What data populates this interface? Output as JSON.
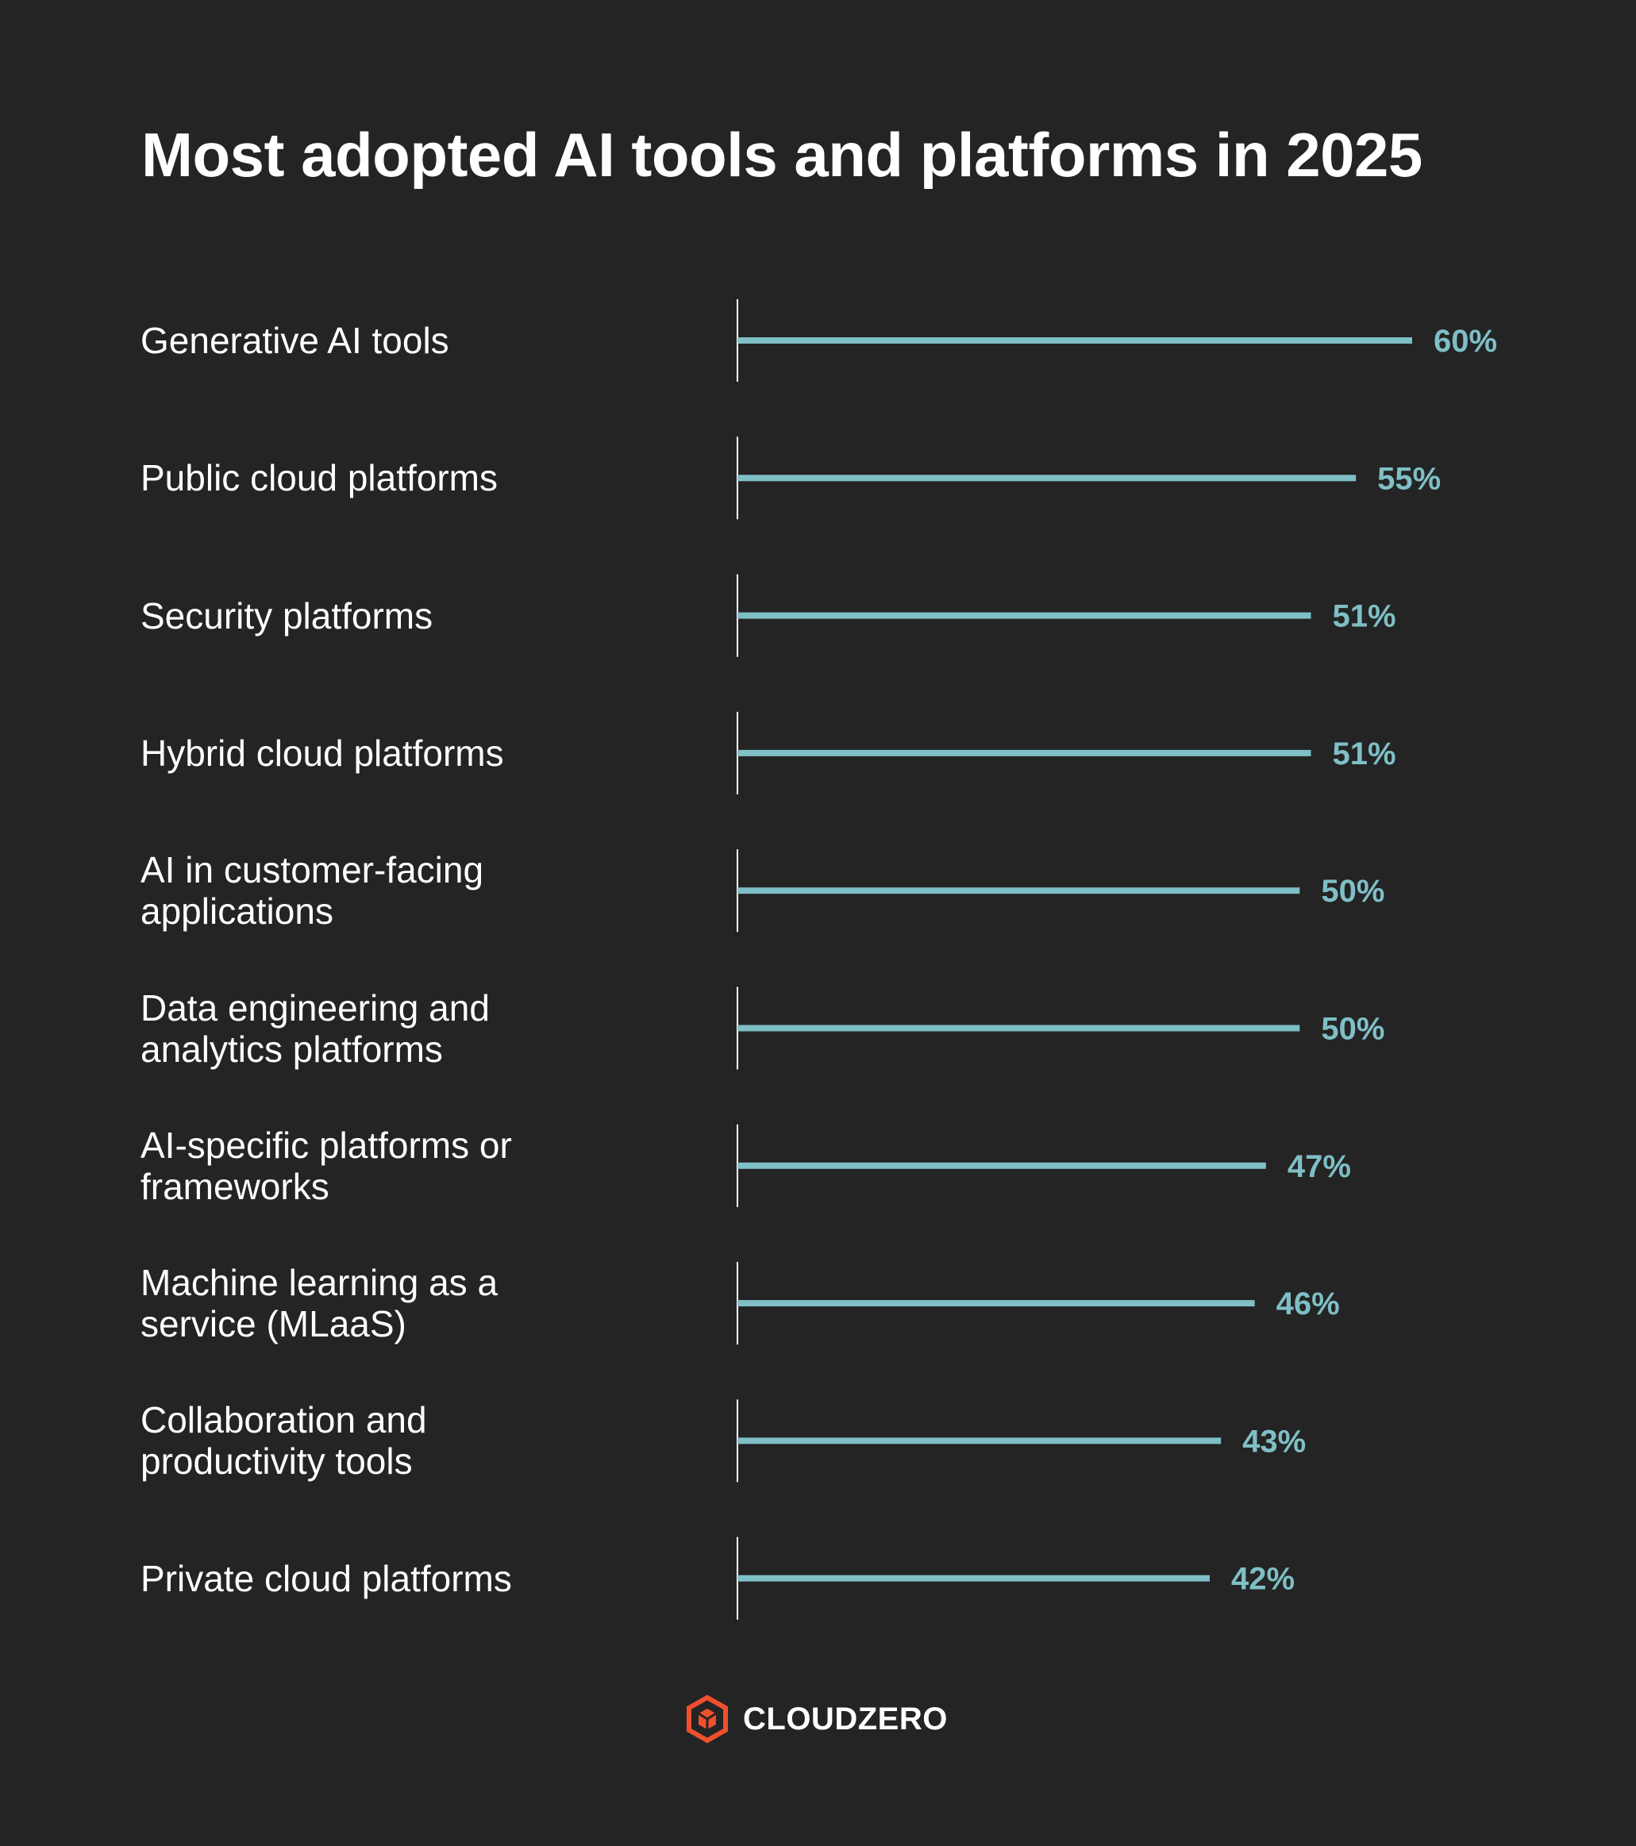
{
  "title": "Most adopted AI tools and platforms in 2025",
  "brand": {
    "name": "CLOUDZERO",
    "logo_icon": "cloudzero-hexagon-icon",
    "logo_color": "#f0502d"
  },
  "colors": {
    "background": "#242424",
    "bar": "#7fbfc6",
    "value_label": "#7fbfc6",
    "text": "#ffffff",
    "axis": "#ffffff"
  },
  "chart_data": {
    "type": "bar",
    "orientation": "horizontal",
    "title": "Most adopted AI tools and platforms in 2025",
    "categories": [
      [
        "Generative AI tools"
      ],
      [
        "Public cloud platforms"
      ],
      [
        "Security platforms"
      ],
      [
        "Hybrid cloud platforms"
      ],
      [
        "AI in customer-facing",
        "applications"
      ],
      [
        "Data engineering and",
        "analytics platforms"
      ],
      [
        "AI-specific platforms or",
        "frameworks"
      ],
      [
        "Machine learning as a",
        "service (MLaaS)"
      ],
      [
        "Collaboration and",
        "productivity tools"
      ],
      [
        "Private cloud platforms"
      ]
    ],
    "values": [
      60,
      55,
      51,
      51,
      50,
      50,
      47,
      46,
      43,
      42
    ],
    "value_labels": [
      "60%",
      "55%",
      "51%",
      "51%",
      "50%",
      "50%",
      "47%",
      "46%",
      "43%",
      "42%"
    ],
    "unit": "%",
    "xlim": [
      0,
      60
    ],
    "grid": false,
    "legend": "none"
  }
}
